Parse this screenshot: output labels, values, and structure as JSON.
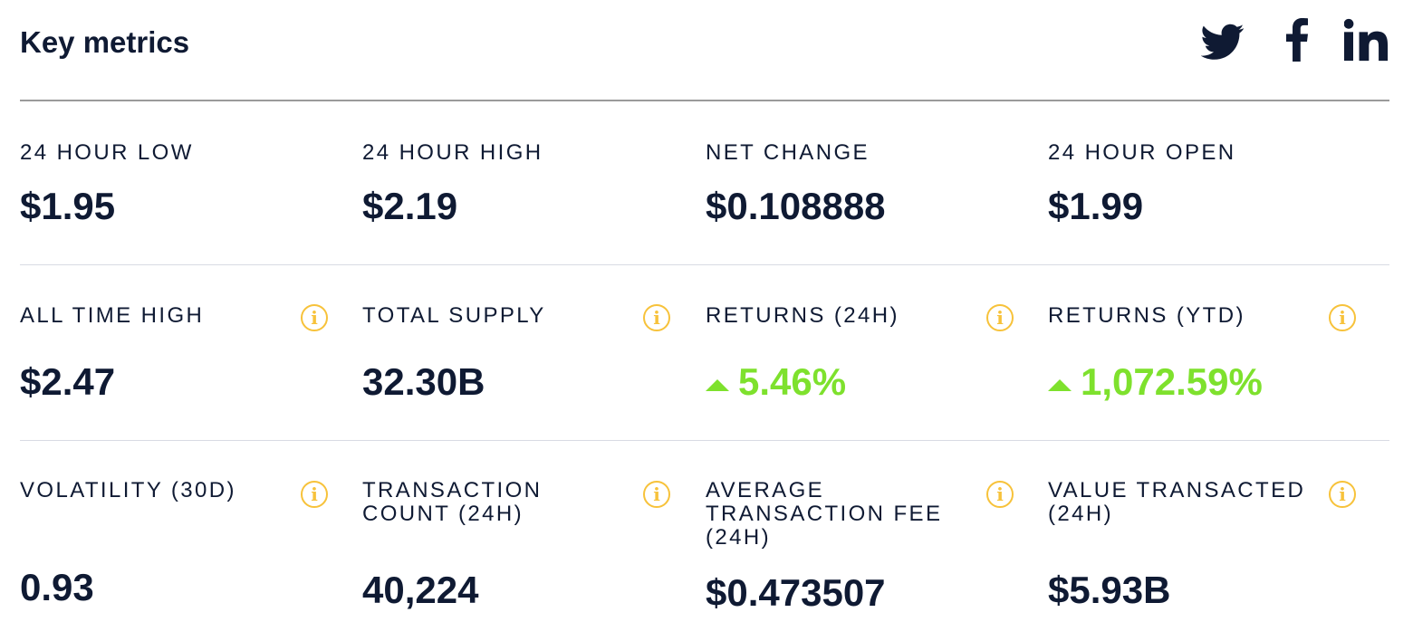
{
  "header": {
    "title": "Key metrics",
    "social": [
      {
        "icon": "twitter-icon"
      },
      {
        "icon": "facebook-icon"
      },
      {
        "icon": "linkedin-icon"
      }
    ]
  },
  "colors": {
    "text": "#0f1a33",
    "positive": "#7ee12d",
    "info_icon": "#f7c23a",
    "divider": "#d8dbe3"
  },
  "metrics": {
    "row1": [
      {
        "label": "24 HOUR LOW",
        "value": "$1.95"
      },
      {
        "label": "24 HOUR HIGH",
        "value": "$2.19"
      },
      {
        "label": "NET CHANGE",
        "value": "$0.108888"
      },
      {
        "label": "24 HOUR OPEN",
        "value": "$1.99"
      }
    ],
    "row2": [
      {
        "label": "ALL TIME HIGH",
        "value": "$2.47",
        "info_icon": "info-icon"
      },
      {
        "label": "TOTAL SUPPLY",
        "value": "32.30B",
        "info_icon": "info-icon"
      },
      {
        "label": "RETURNS (24H)",
        "value": "5.46%",
        "trend": "up",
        "info_icon": "info-icon"
      },
      {
        "label": "RETURNS (YTD)",
        "value": "1,072.59%",
        "trend": "up",
        "info_icon": "info-icon"
      }
    ],
    "row3": [
      {
        "label": "VOLATILITY (30D)",
        "value": "0.93",
        "info_icon": "info-icon"
      },
      {
        "label": "TRANSACTION COUNT (24H)",
        "value": "40,224",
        "info_icon": "info-icon"
      },
      {
        "label": "AVERAGE TRANSACTION FEE (24H)",
        "value": "$0.473507",
        "info_icon": "info-icon"
      },
      {
        "label": "VALUE TRANSACTED (24H)",
        "value": "$5.93B",
        "info_icon": "info-icon"
      }
    ]
  }
}
